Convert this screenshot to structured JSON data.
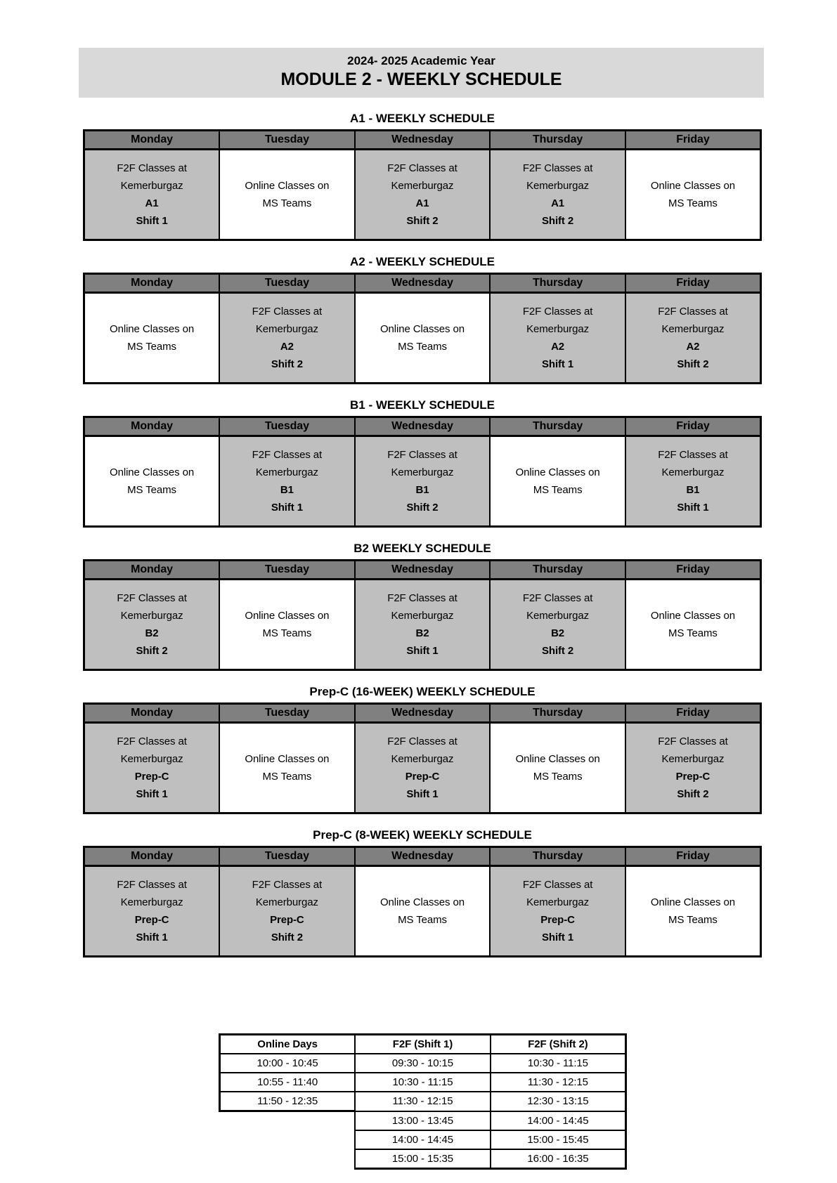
{
  "banner": {
    "line1": "2024- 2025 Academic Year",
    "line2": "MODULE 2 - WEEKLY SCHEDULE"
  },
  "days": [
    "Monday",
    "Tuesday",
    "Wednesday",
    "Thursday",
    "Friday"
  ],
  "colors": {
    "banner_bg": "#d9d9d9",
    "day_header_bg": "#808080",
    "f2f_cell_bg": "#bfbfbf",
    "online_cell_bg": "#ffffff",
    "border": "#000000"
  },
  "schedules": [
    {
      "title": "A1 - WEEKLY SCHEDULE",
      "cells": [
        {
          "type": "f2f",
          "l1": "F2F Classes at",
          "l2": "Kemerburgaz",
          "l3": "A1",
          "l4": "Shift 1"
        },
        {
          "type": "online",
          "l1": "Online Classes on",
          "l2": "MS Teams"
        },
        {
          "type": "f2f",
          "l1": "F2F Classes at",
          "l2": "Kemerburgaz",
          "l3": "A1",
          "l4": "Shift 2"
        },
        {
          "type": "f2f",
          "l1": "F2F Classes at",
          "l2": "Kemerburgaz",
          "l3": "A1",
          "l4": "Shift 2"
        },
        {
          "type": "online",
          "l1": "Online Classes on",
          "l2": "MS Teams"
        }
      ]
    },
    {
      "title": "A2 - WEEKLY SCHEDULE",
      "cells": [
        {
          "type": "online",
          "l1": "Online Classes on",
          "l2": "MS Teams"
        },
        {
          "type": "f2f",
          "l1": "F2F Classes at",
          "l2": "Kemerburgaz",
          "l3": "A2",
          "l4": "Shift 2"
        },
        {
          "type": "online",
          "l1": "Online Classes on",
          "l2": "MS Teams"
        },
        {
          "type": "f2f",
          "l1": "F2F Classes at",
          "l2": "Kemerburgaz",
          "l3": "A2",
          "l4": "Shift 1"
        },
        {
          "type": "f2f",
          "l1": "F2F Classes at",
          "l2": "Kemerburgaz",
          "l3": "A2",
          "l4": "Shift 2"
        }
      ]
    },
    {
      "title": "B1 - WEEKLY SCHEDULE",
      "cells": [
        {
          "type": "online",
          "l1": "Online Classes on",
          "l2": "MS Teams"
        },
        {
          "type": "f2f",
          "l1": "F2F Classes at",
          "l2": "Kemerburgaz",
          "l3": "B1",
          "l4": "Shift 1"
        },
        {
          "type": "f2f",
          "l1": "F2F Classes at",
          "l2": "Kemerburgaz",
          "l3": "B1",
          "l4": "Shift 2"
        },
        {
          "type": "online",
          "l1": "Online Classes on",
          "l2": "MS Teams"
        },
        {
          "type": "f2f",
          "l1": "F2F Classes at",
          "l2": "Kemerburgaz",
          "l3": "B1",
          "l4": "Shift 1"
        }
      ]
    },
    {
      "title": "B2  WEEKLY SCHEDULE",
      "cells": [
        {
          "type": "f2f",
          "l1": "F2F Classes at",
          "l2": "Kemerburgaz",
          "l3": "B2",
          "l4": "Shift 2"
        },
        {
          "type": "online",
          "l1": "Online Classes on",
          "l2": "MS Teams"
        },
        {
          "type": "f2f",
          "l1": "F2F Classes at",
          "l2": "Kemerburgaz",
          "l3": "B2",
          "l4": "Shift 1"
        },
        {
          "type": "f2f",
          "l1": "F2F Classes at",
          "l2": "Kemerburgaz",
          "l3": "B2",
          "l4": "Shift 2"
        },
        {
          "type": "online",
          "l1": "Online Classes on",
          "l2": "MS Teams"
        }
      ]
    },
    {
      "title": "Prep-C (16-WEEK) WEEKLY SCHEDULE",
      "cells": [
        {
          "type": "f2f",
          "l1": "F2F Classes at",
          "l2": "Kemerburgaz",
          "l3": "Prep-C",
          "l4": "Shift 1"
        },
        {
          "type": "online",
          "l1": "Online Classes on",
          "l2": "MS Teams"
        },
        {
          "type": "f2f",
          "l1": "F2F Classes at",
          "l2": "Kemerburgaz",
          "l3": "Prep-C",
          "l4": "Shift 1"
        },
        {
          "type": "online",
          "l1": "Online Classes on",
          "l2": "MS Teams"
        },
        {
          "type": "f2f",
          "l1": "F2F Classes at",
          "l2": "Kemerburgaz",
          "l3": "Prep-C",
          "l4": "Shift 2"
        }
      ]
    },
    {
      "title": "Prep-C (8-WEEK) WEEKLY SCHEDULE",
      "cells": [
        {
          "type": "f2f",
          "l1": "F2F Classes at",
          "l2": "Kemerburgaz",
          "l3": "Prep-C",
          "l4": "Shift 1"
        },
        {
          "type": "f2f",
          "l1": "F2F Classes at",
          "l2": "Kemerburgaz",
          "l3": "Prep-C",
          "l4": "Shift 2"
        },
        {
          "type": "online",
          "l1": "Online Classes on",
          "l2": "MS Teams"
        },
        {
          "type": "f2f",
          "l1": "F2F Classes at",
          "l2": "Kemerburgaz",
          "l3": "Prep-C",
          "l4": "Shift 1"
        },
        {
          "type": "online",
          "l1": "Online Classes on",
          "l2": "MS Teams"
        }
      ]
    }
  ],
  "time_table": {
    "headers": [
      "Online Days",
      "F2F (Shift 1)",
      "F2F (Shift 2)"
    ],
    "rows": [
      [
        "10:00 - 10:45",
        "09:30 - 10:15",
        "10:30 - 11:15"
      ],
      [
        "10:55 - 11:40",
        "10:30 - 11:15",
        "11:30 - 12:15"
      ],
      [
        "11:50 - 12:35",
        "11:30 - 12:15",
        "12:30 - 13:15"
      ],
      [
        "",
        "13:00 - 13:45",
        "14:00 - 14:45"
      ],
      [
        "",
        "14:00 - 14:45",
        "15:00 - 15:45"
      ],
      [
        "",
        "15:00 - 15:35",
        "16:00 - 16:35"
      ]
    ]
  }
}
